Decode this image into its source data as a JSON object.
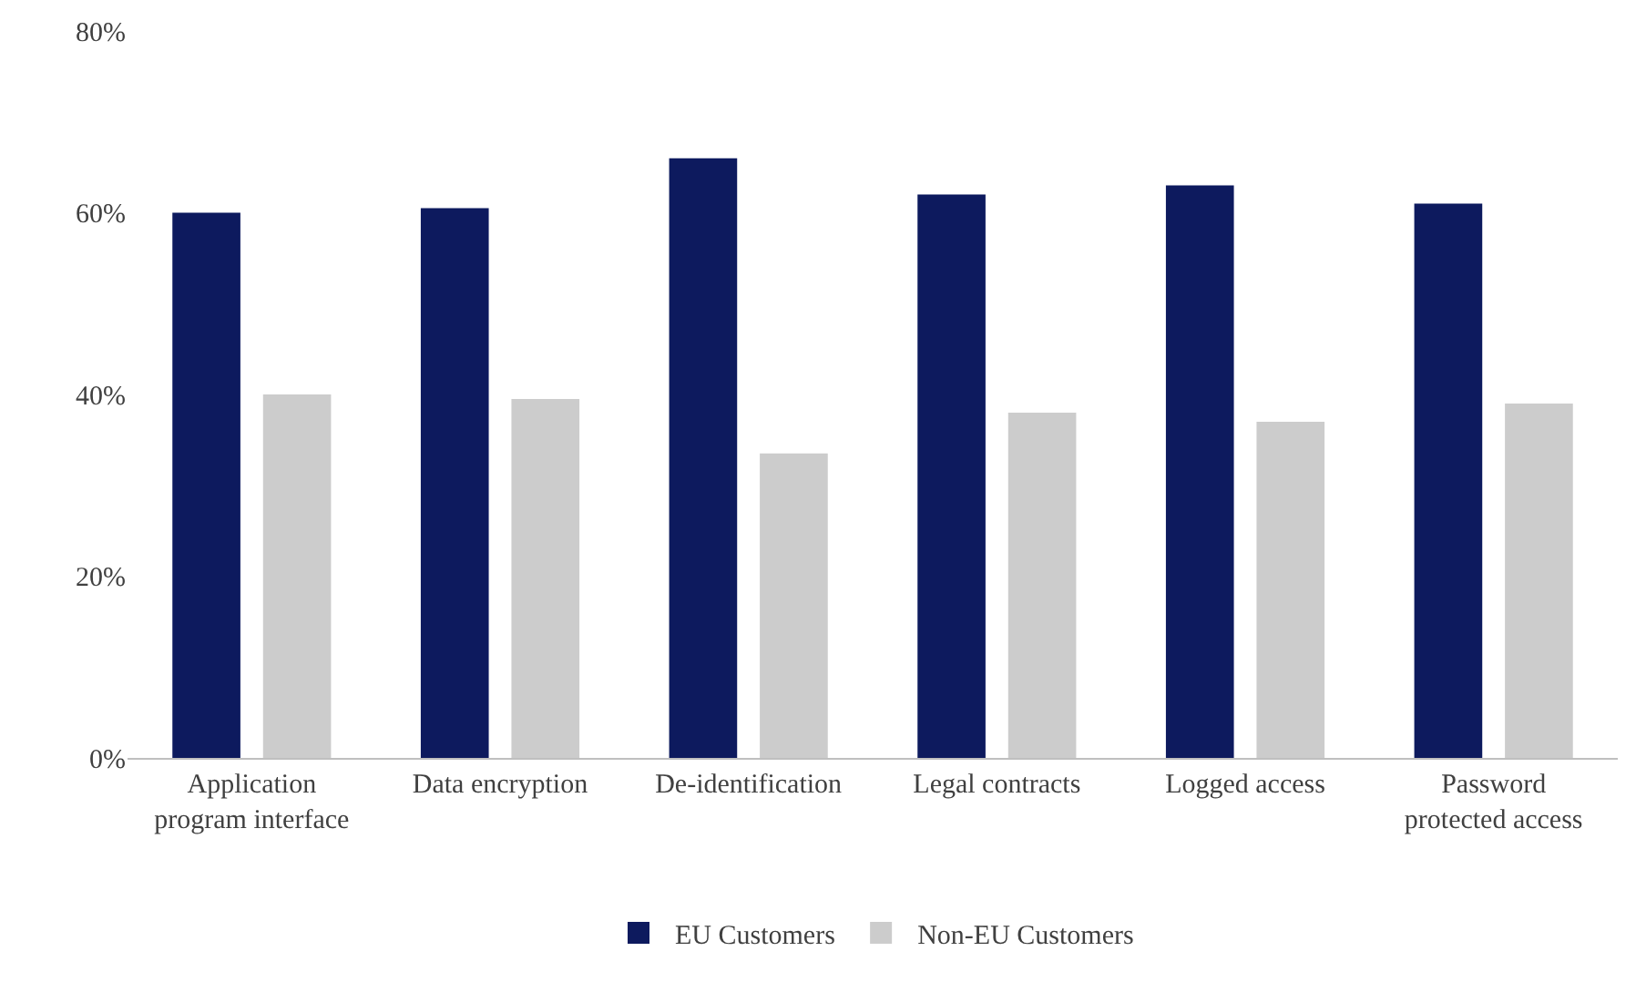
{
  "chart_data": {
    "type": "bar",
    "categories": [
      "Application program interface",
      "Data encryption",
      "De-identification",
      "Legal contracts",
      "Logged access",
      "Password protected access"
    ],
    "series": [
      {
        "name": "EU Customers",
        "color": "#0d1a5e",
        "values": [
          60,
          60.5,
          66,
          62,
          63,
          61
        ]
      },
      {
        "name": "Non-EU Customers",
        "color": "#cccccc",
        "values": [
          40,
          39.5,
          33.5,
          38,
          37,
          39
        ]
      }
    ],
    "ylim": [
      0,
      80
    ],
    "yticks": [
      {
        "value": 0,
        "label": "0%"
      },
      {
        "value": 20,
        "label": "20%"
      },
      {
        "value": 40,
        "label": "40%"
      },
      {
        "value": 60,
        "label": "60%"
      },
      {
        "value": 80,
        "label": "80%"
      }
    ],
    "legend": "bottom"
  }
}
